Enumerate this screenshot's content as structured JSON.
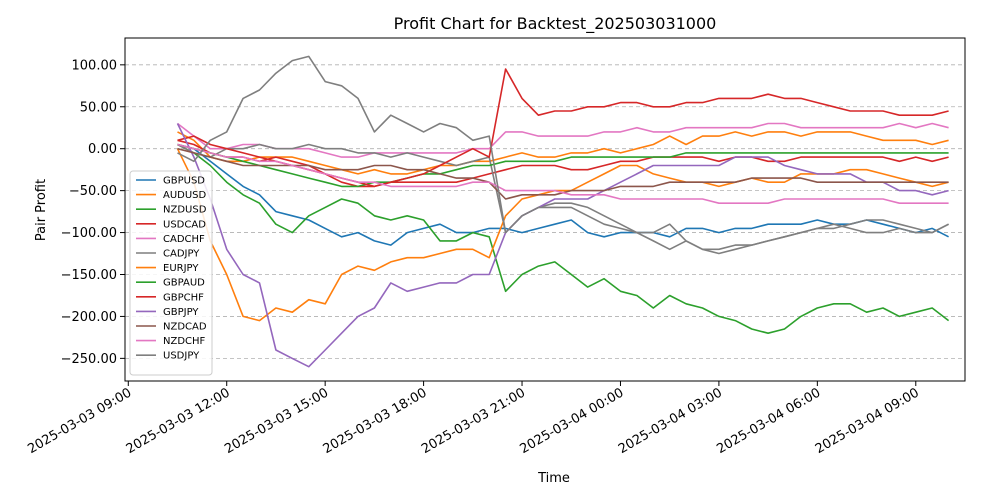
{
  "chart_data": {
    "type": "line",
    "title": "Profit Chart for Backtest_202503031000",
    "xlabel": "Time",
    "ylabel": "Pair Profit",
    "x": [
      10.5,
      11,
      11.5,
      12,
      12.5,
      13,
      13.5,
      14,
      14.5,
      15,
      15.5,
      16,
      16.5,
      17,
      17.5,
      18,
      18.5,
      19,
      19.5,
      20,
      20.5,
      21,
      21.5,
      22,
      22.5,
      23,
      23.5,
      24,
      24.5,
      25,
      25.5,
      26,
      26.5,
      27,
      27.5,
      28,
      28.5,
      29,
      29.5,
      30,
      30.5,
      31,
      31.5,
      32,
      32.5,
      33,
      33.5,
      34
    ],
    "x_ticks": [
      {
        "x": 9,
        "label": "2025-03-03 09:00"
      },
      {
        "x": 12,
        "label": "2025-03-03 12:00"
      },
      {
        "x": 15,
        "label": "2025-03-03 15:00"
      },
      {
        "x": 18,
        "label": "2025-03-03 18:00"
      },
      {
        "x": 21,
        "label": "2025-03-03 21:00"
      },
      {
        "x": 24,
        "label": "2025-03-04 00:00"
      },
      {
        "x": 27,
        "label": "2025-03-04 03:00"
      },
      {
        "x": 30,
        "label": "2025-03-04 06:00"
      },
      {
        "x": 33,
        "label": "2025-03-04 09:00"
      }
    ],
    "xlim": [
      8.9,
      34.5
    ],
    "ylim": [
      -277,
      132
    ],
    "y_ticks": [
      -250,
      -200,
      -150,
      -100,
      -50,
      0,
      50,
      100
    ],
    "y_tick_labels": [
      "−250.00",
      "−200.00",
      "−150.00",
      "−100.00",
      "−50.00",
      "0.00",
      "50.00",
      "100.00"
    ],
    "grid": "y-dashed",
    "legend_position": "left",
    "series": [
      {
        "name": "GBPUSD",
        "color": "#1f77b4",
        "values": [
          5,
          0,
          -15,
          -30,
          -45,
          -55,
          -75,
          -80,
          -85,
          -95,
          -105,
          -100,
          -110,
          -115,
          -100,
          -95,
          -90,
          -100,
          -100,
          -95,
          -95,
          -100,
          -95,
          -90,
          -85,
          -100,
          -105,
          -100,
          -100,
          -100,
          -105,
          -95,
          -95,
          -100,
          -95,
          -95,
          -90,
          -90,
          -90,
          -85,
          -90,
          -90,
          -85,
          -90,
          -95,
          -100,
          -95,
          -105
        ]
      },
      {
        "name": "AUDUSD",
        "color": "#ff7f0e",
        "values": [
          20,
          10,
          -10,
          -15,
          -15,
          -10,
          -10,
          -10,
          -15,
          -20,
          -25,
          -30,
          -25,
          -30,
          -30,
          -25,
          -20,
          -20,
          -15,
          -15,
          -10,
          -5,
          -10,
          -10,
          -5,
          -5,
          0,
          -5,
          0,
          5,
          15,
          5,
          15,
          15,
          20,
          15,
          20,
          20,
          15,
          20,
          20,
          20,
          15,
          10,
          10,
          10,
          5,
          10
        ]
      },
      {
        "name": "NZDUSD",
        "color": "#2ca02c",
        "values": [
          5,
          -5,
          -20,
          -40,
          -55,
          -65,
          -90,
          -100,
          -80,
          -70,
          -60,
          -65,
          -80,
          -85,
          -80,
          -85,
          -110,
          -110,
          -100,
          -105,
          -170,
          -150,
          -140,
          -135,
          -150,
          -165,
          -155,
          -170,
          -175,
          -190,
          -175,
          -185,
          -190,
          -200,
          -205,
          -215,
          -220,
          -215,
          -200,
          -190,
          -185,
          -185,
          -195,
          -190,
          -200,
          -195,
          -190,
          -205
        ]
      },
      {
        "name": "USDCAD",
        "color": "#d62728",
        "values": [
          10,
          5,
          -5,
          -10,
          -10,
          -15,
          -10,
          -15,
          -20,
          -30,
          -40,
          -45,
          -45,
          -40,
          -40,
          -40,
          -40,
          -40,
          -35,
          -30,
          -25,
          -20,
          -20,
          -20,
          -25,
          -25,
          -20,
          -15,
          -15,
          -10,
          -10,
          -10,
          -10,
          -15,
          -10,
          -10,
          -15,
          -15,
          -10,
          -10,
          -10,
          -10,
          -10,
          -10,
          -15,
          -10,
          -15,
          -10
        ]
      },
      {
        "name": "CADCHF",
        "color": "#e377c2",
        "values": [
          30,
          15,
          0,
          0,
          5,
          5,
          0,
          0,
          0,
          -5,
          -10,
          -10,
          -5,
          -5,
          -5,
          -5,
          -5,
          -5,
          0,
          0,
          20,
          20,
          15,
          15,
          15,
          15,
          20,
          20,
          25,
          20,
          20,
          25,
          25,
          25,
          25,
          25,
          30,
          30,
          25,
          25,
          25,
          25,
          25,
          25,
          30,
          25,
          30,
          25
        ]
      },
      {
        "name": "CADJPY",
        "color": "#7f7f7f",
        "values": [
          5,
          -5,
          -10,
          0,
          0,
          5,
          0,
          0,
          5,
          0,
          0,
          -5,
          -5,
          -10,
          -5,
          -10,
          -15,
          -20,
          -15,
          -10,
          -100,
          -80,
          -70,
          -65,
          -65,
          -70,
          -80,
          -90,
          -100,
          -100,
          -90,
          -110,
          -120,
          -120,
          -115,
          -115,
          -110,
          -105,
          -100,
          -95,
          -95,
          -90,
          -85,
          -85,
          -90,
          -95,
          -100,
          -90
        ]
      },
      {
        "name": "EURJPY",
        "color": "#ff7f0e",
        "values": [
          0,
          -40,
          -110,
          -150,
          -200,
          -205,
          -190,
          -195,
          -180,
          -185,
          -150,
          -140,
          -145,
          -135,
          -130,
          -130,
          -125,
          -120,
          -120,
          -130,
          -80,
          -60,
          -55,
          -50,
          -50,
          -40,
          -30,
          -20,
          -20,
          -30,
          -35,
          -40,
          -40,
          -45,
          -40,
          -35,
          -40,
          -40,
          -30,
          -30,
          -30,
          -25,
          -25,
          -30,
          -35,
          -40,
          -45,
          -40
        ]
      },
      {
        "name": "GBPAUD",
        "color": "#2ca02c",
        "values": [
          5,
          0,
          -5,
          -10,
          -15,
          -20,
          -25,
          -30,
          -35,
          -40,
          -45,
          -45,
          -40,
          -40,
          -35,
          -30,
          -30,
          -25,
          -20,
          -20,
          -15,
          -15,
          -15,
          -15,
          -10,
          -10,
          -10,
          -10,
          -10,
          -10,
          -10,
          -5,
          -5,
          -5,
          -5,
          -5,
          -5,
          -5,
          -5,
          -5,
          -5,
          -5,
          -5,
          -5,
          -5,
          -5,
          -5,
          -5
        ]
      },
      {
        "name": "GBPCHF",
        "color": "#d62728",
        "values": [
          10,
          15,
          5,
          0,
          -5,
          -10,
          -15,
          -20,
          -25,
          -30,
          -35,
          -40,
          -45,
          -40,
          -35,
          -30,
          -20,
          -10,
          0,
          -10,
          95,
          60,
          40,
          45,
          45,
          50,
          50,
          55,
          55,
          50,
          50,
          55,
          55,
          60,
          60,
          60,
          65,
          60,
          60,
          55,
          50,
          45,
          45,
          45,
          40,
          40,
          40,
          45
        ]
      },
      {
        "name": "GBPJPY",
        "color": "#9467bd",
        "values": [
          30,
          -10,
          -60,
          -120,
          -150,
          -160,
          -240,
          -250,
          -260,
          -240,
          -220,
          -200,
          -190,
          -160,
          -170,
          -165,
          -160,
          -160,
          -150,
          -150,
          -100,
          -80,
          -70,
          -60,
          -60,
          -60,
          -50,
          -40,
          -30,
          -20,
          -20,
          -20,
          -20,
          -20,
          -10,
          -10,
          -10,
          -20,
          -25,
          -30,
          -30,
          -30,
          -40,
          -40,
          -50,
          -50,
          -55,
          -50
        ]
      },
      {
        "name": "NZDCAD",
        "color": "#8c564b",
        "values": [
          0,
          -5,
          -10,
          -15,
          -20,
          -20,
          -20,
          -20,
          -20,
          -25,
          -25,
          -25,
          -20,
          -20,
          -25,
          -25,
          -30,
          -35,
          -35,
          -40,
          -60,
          -55,
          -55,
          -55,
          -50,
          -50,
          -50,
          -45,
          -45,
          -45,
          -40,
          -40,
          -40,
          -40,
          -40,
          -35,
          -35,
          -35,
          -35,
          -40,
          -40,
          -40,
          -40,
          -40,
          -40,
          -40,
          -40,
          -40
        ]
      },
      {
        "name": "NZDCHF",
        "color": "#e377c2",
        "values": [
          5,
          0,
          -5,
          -10,
          -10,
          -15,
          -15,
          -20,
          -25,
          -30,
          -35,
          -40,
          -40,
          -45,
          -45,
          -45,
          -45,
          -45,
          -40,
          -40,
          -50,
          -50,
          -50,
          -50,
          -55,
          -55,
          -55,
          -60,
          -60,
          -60,
          -60,
          -60,
          -60,
          -65,
          -65,
          -65,
          -65,
          -60,
          -60,
          -60,
          -60,
          -60,
          -60,
          -60,
          -65,
          -65,
          -65,
          -65
        ]
      },
      {
        "name": "USDJPY",
        "color": "#7f7f7f",
        "values": [
          -5,
          -15,
          10,
          20,
          60,
          70,
          90,
          105,
          110,
          80,
          75,
          60,
          20,
          40,
          30,
          20,
          30,
          25,
          10,
          15,
          -100,
          -80,
          -70,
          -70,
          -70,
          -80,
          -90,
          -95,
          -100,
          -110,
          -120,
          -110,
          -120,
          -125,
          -120,
          -115,
          -110,
          -105,
          -100,
          -95,
          -90,
          -95,
          -100,
          -100,
          -95,
          -100,
          -100,
          -90
        ]
      }
    ]
  }
}
